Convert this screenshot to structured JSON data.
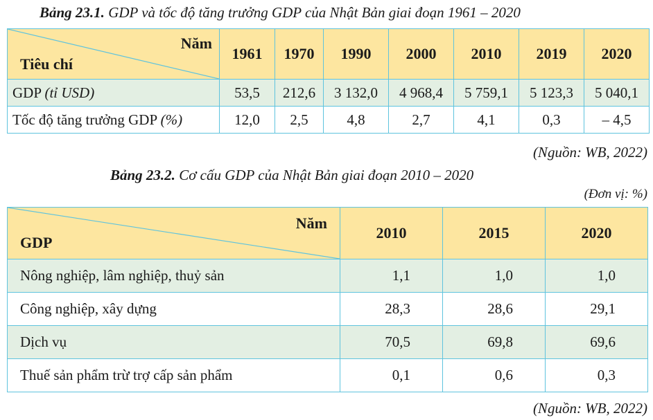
{
  "table1": {
    "caption_bold": "Bảng 23.1.",
    "caption_rest": " GDP và tốc độ tăng trưởng GDP của Nhật Bản giai đoạn 1961 – 2020",
    "corner_top": "Năm",
    "corner_bottom": "Tiêu chí",
    "years": [
      "1961",
      "1970",
      "1990",
      "2000",
      "2010",
      "2019",
      "2020"
    ],
    "rows": [
      {
        "label": "GDP",
        "unit": "(tỉ USD)",
        "values": [
          "53,5",
          "212,6",
          "3 132,0",
          "4 968,4",
          "5 759,1",
          "5 123,3",
          "5 040,1"
        ]
      },
      {
        "label": "Tốc độ tăng trưởng GDP",
        "unit": "(%)",
        "values": [
          "12,0",
          "2,5",
          "4,8",
          "2,7",
          "4,1",
          "0,3",
          "– 4,5"
        ]
      }
    ],
    "source": "(Nguồn: WB, 2022)"
  },
  "table2": {
    "caption_bold": "Bảng 23.2.",
    "caption_rest": " Cơ cấu GDP của Nhật Bản giai đoạn 2010 – 2020",
    "unit_note": "(Đơn vị: %)",
    "corner_top": "Năm",
    "corner_bottom": "GDP",
    "years": [
      "2010",
      "2015",
      "2020"
    ],
    "rows": [
      {
        "label": "Nông nghiệp, lâm nghiệp, thuỷ sản",
        "values": [
          "1,1",
          "1,0",
          "1,0"
        ]
      },
      {
        "label": "Công nghiệp, xây dựng",
        "values": [
          "28,3",
          "28,6",
          "29,1"
        ]
      },
      {
        "label": "Dịch vụ",
        "values": [
          "70,5",
          "69,8",
          "69,6"
        ]
      },
      {
        "label": "Thuế sản phẩm trừ trợ cấp sản phẩm",
        "values": [
          "0,1",
          "0,6",
          "0,3"
        ]
      }
    ],
    "source": "(Nguồn: WB, 2022)"
  },
  "colors": {
    "header_bg": "#fde6a0",
    "row_green": "#e3efe3",
    "border": "#5ec3de"
  }
}
